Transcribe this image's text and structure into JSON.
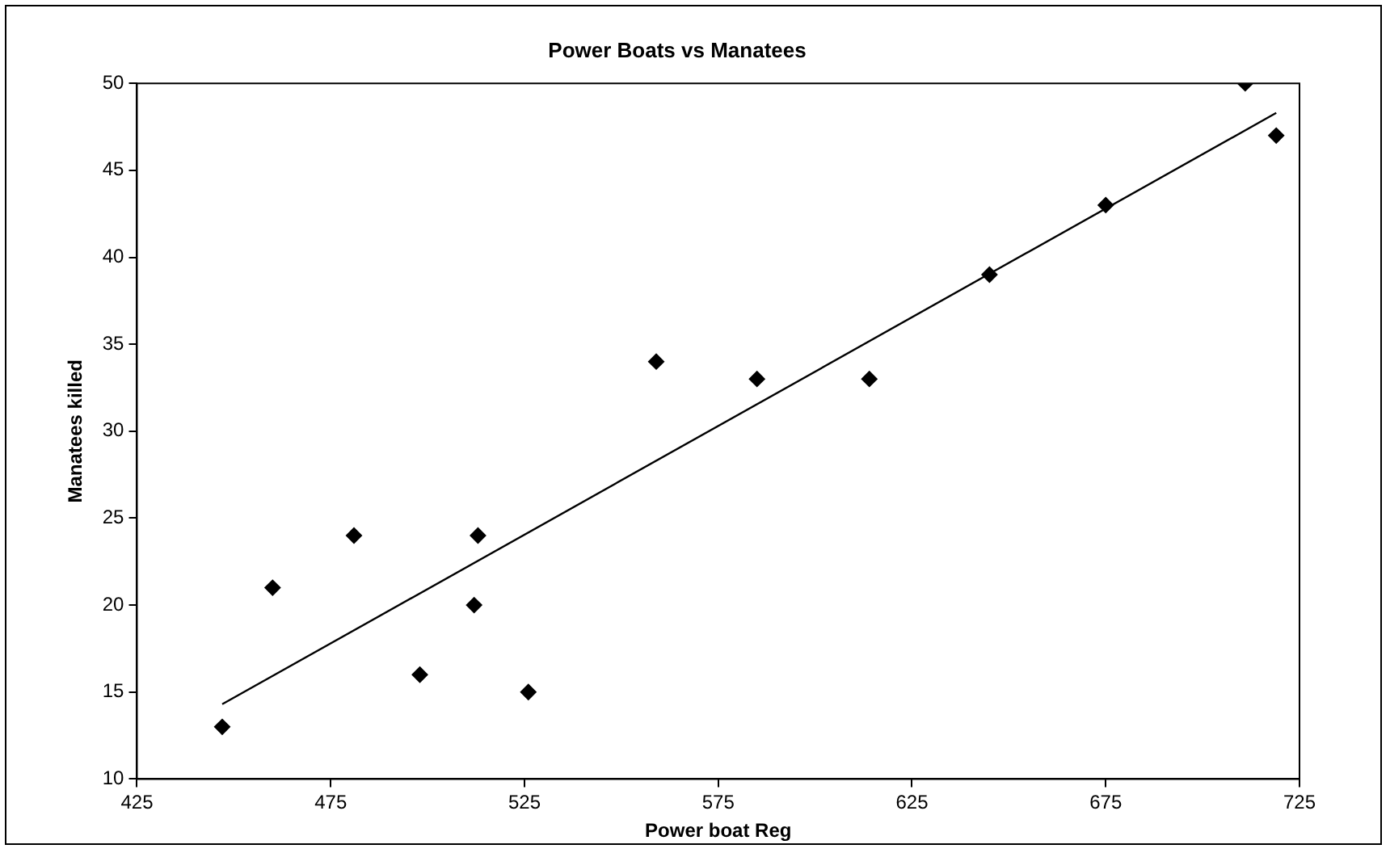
{
  "chart_data": {
    "type": "scatter",
    "title": "Power Boats vs Manatees",
    "xlabel": "Power boat Reg",
    "ylabel": "Manatees killed",
    "xlim": [
      425,
      725
    ],
    "xticks": [
      425,
      475,
      525,
      575,
      625,
      675,
      725
    ],
    "ylim": [
      10,
      50
    ],
    "yticks": [
      10,
      15,
      20,
      25,
      30,
      35,
      40,
      45,
      50
    ],
    "grid": false,
    "legend": false,
    "series": [
      {
        "marker": "diamond",
        "color": "#000000",
        "x": [
          447,
          460,
          481,
          498,
          512,
          513,
          526,
          559,
          585,
          614,
          645,
          675,
          711,
          719
        ],
        "values": [
          13,
          21,
          24,
          16,
          20,
          24,
          15,
          34,
          33,
          33,
          39,
          43,
          50,
          47
        ]
      },
      {
        "type": "line",
        "marker": "none",
        "color": "#000000",
        "x": [
          447,
          719
        ],
        "values": [
          14.3,
          48.3
        ]
      }
    ]
  }
}
